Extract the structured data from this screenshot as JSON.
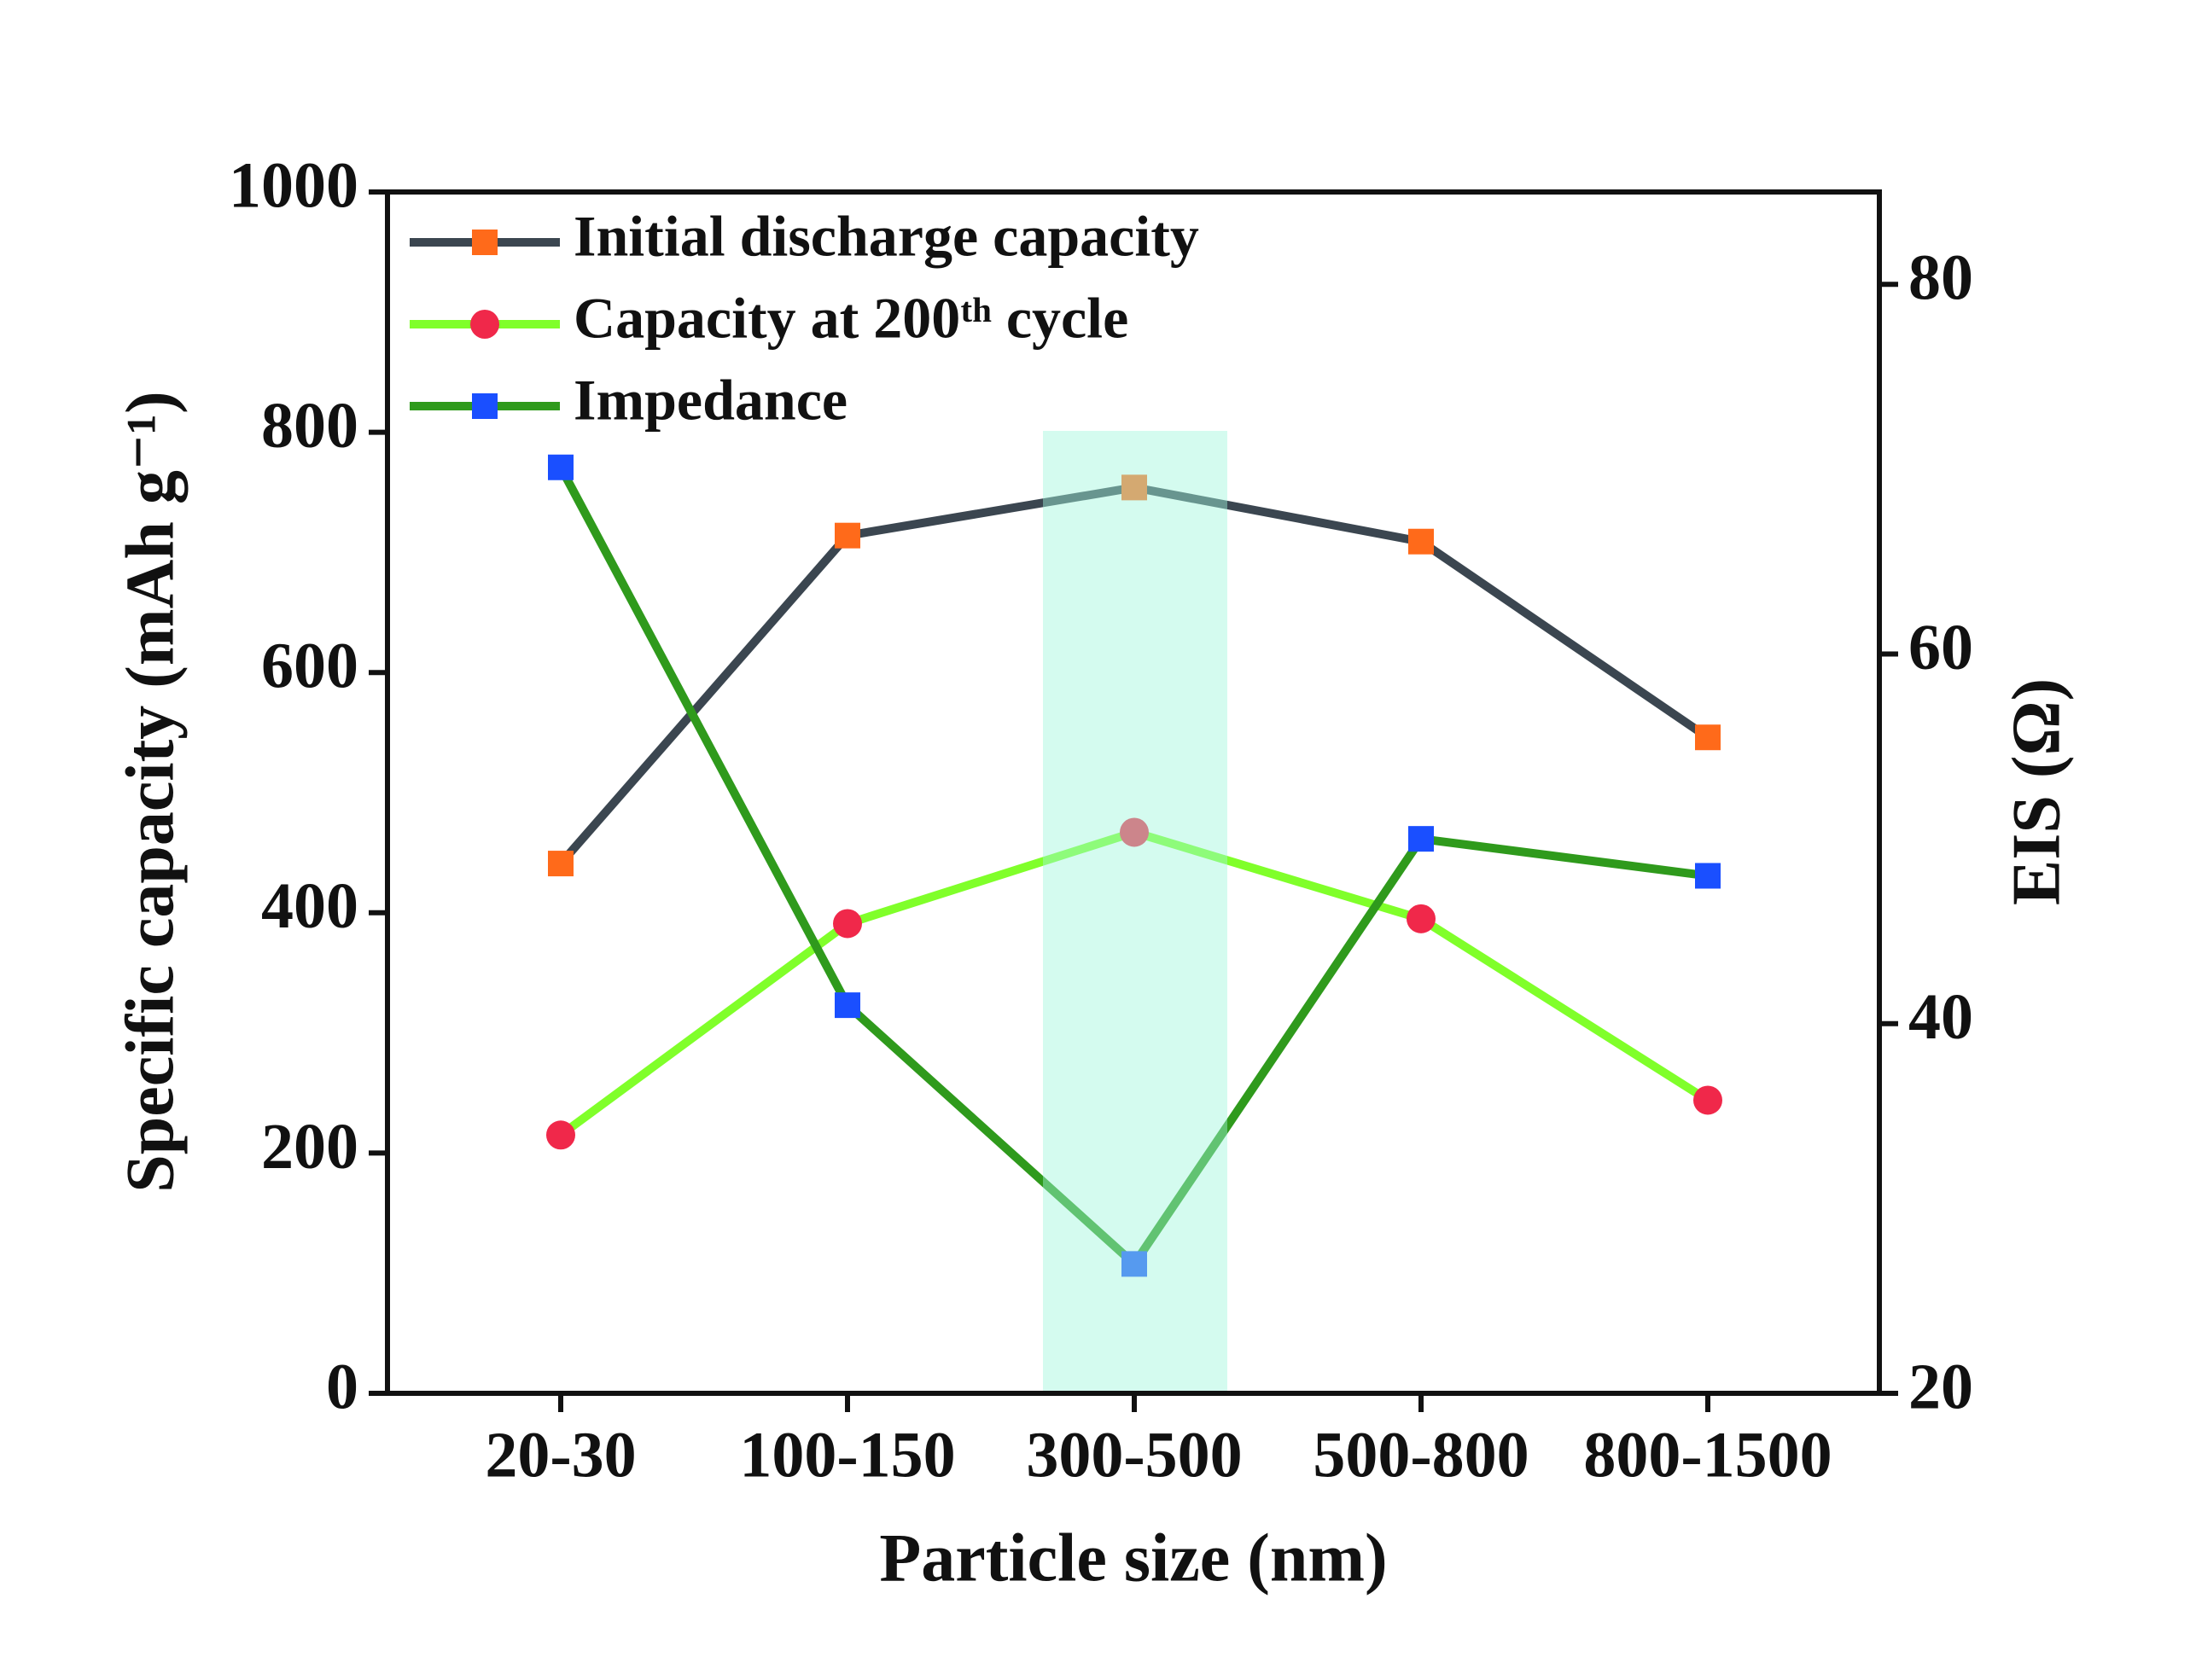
{
  "chart_data": {
    "type": "line",
    "x_label": "Particle size (nm)",
    "y_label": "Specific capacity (mAh g⁻¹)",
    "y2_label": "EIS (Ω)",
    "categories": [
      "20-30",
      "100-150",
      "300-500",
      "500-800",
      "800-1500"
    ],
    "ylim": [
      0,
      1000
    ],
    "yticks": [
      0,
      200,
      400,
      600,
      800,
      1000
    ],
    "y2lim": [
      20,
      85
    ],
    "y2ticks": [
      20,
      40,
      60,
      80
    ],
    "legend": "upper left",
    "series": [
      {
        "name": "Initial discharge capacity",
        "color": "#3b4650",
        "marker_color": "#ff6a1a",
        "marker": "square",
        "values": [
          441,
          714,
          754,
          709,
          546
        ]
      },
      {
        "name": "Capacity at 200ᵗʰ cycle",
        "color": "#80ff2a",
        "marker_color": "#f0284a",
        "marker": "circle",
        "values": [
          215,
          391,
          467,
          395,
          244
        ]
      },
      {
        "name": "Impedance",
        "color": "#2f9a1c",
        "marker_color": "#1a4fff",
        "marker": "square",
        "axis": "y2",
        "values": [
          70.1,
          41.0,
          27.0,
          50.0,
          48.0
        ]
      }
    ]
  }
}
